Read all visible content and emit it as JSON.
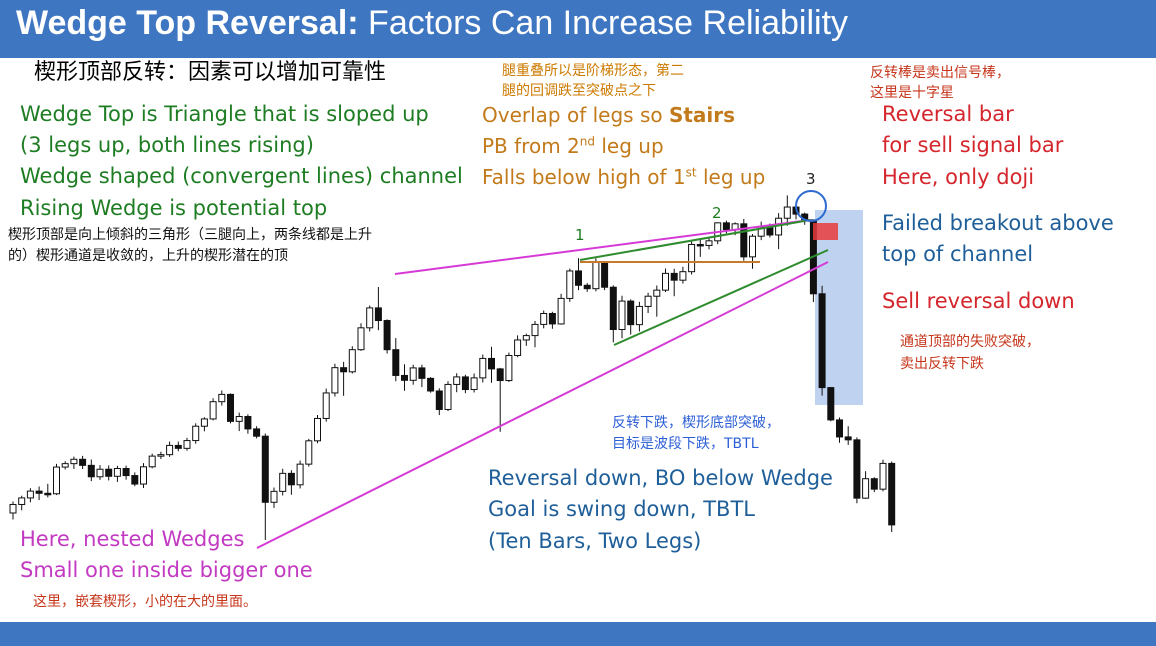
{
  "slide": {
    "title_bold": "Wedge Top Reversal:",
    "title_rest": " Factors Can Increase Reliability",
    "subtitle_cn": "楔形顶部反转：因素可以增加可靠性"
  },
  "left_notes": {
    "line1": "Wedge Top is Triangle that is sloped up",
    "line2": "(3 legs up, both lines rising)",
    "line3": "Wedge shaped (convergent lines) channel",
    "line4": "Rising Wedge is potential top",
    "cn1": "楔形顶部是向上倾斜的三角形（三腿向上，两条线都是上升",
    "cn2": "的）楔形通道是收敛的，上升的楔形潜在的顶"
  },
  "middle_notes": {
    "cn1": "腿重叠所以是阶梯形态，第二",
    "cn2": "腿的回调跌至突破点之下",
    "line1_pre": "Overlap of legs so ",
    "line1_bold": "Stairs",
    "line2_pre": "PB from 2",
    "line2_sup": "nd",
    "line2_post": " leg up",
    "line3_pre": "Falls below high of 1",
    "line3_sup": "st",
    "line3_post": " leg up"
  },
  "right_notes": {
    "cn1": "反转棒是卖出信号棒，",
    "cn2": "这里是十字星",
    "line1": "Reversal bar",
    "line2": "for sell signal bar",
    "line3": "Here, only doji",
    "line4": "Failed breakout above",
    "line5": "top of channel",
    "line6": "Sell reversal down",
    "cn3": "通道顶部的失败突破，",
    "cn4": "卖出反转下跌"
  },
  "bottom_notes": {
    "cn1": "反转下跌，楔形底部突破，",
    "cn2": "目标是波段下跌，TBTL",
    "line1": "Reversal down, BO below Wedge",
    "line2": "Goal is swing down, TBTL",
    "line3": "(Ten Bars, Two Legs)",
    "nested1": "Here, nested Wedges",
    "nested2": "Small one inside bigger one",
    "nested_cn": "这里，嵌套楔形，小的在大的里面。"
  },
  "chart_data": {
    "type": "candlestick",
    "leg_labels": [
      "1",
      "2",
      "3"
    ],
    "colors": {
      "bull": "#ffffff",
      "bear": "#111111",
      "outer_wedge": "#d63ad6",
      "inner_wedge": "#2e8b2e",
      "breakout_line": "#c77a2e",
      "highlight": "#a9c4ec",
      "signal": "#e83b3b"
    },
    "candles": [
      [
        14.0,
        18.7,
        11.3,
        17.5
      ],
      [
        17.5,
        21.1,
        15.1,
        20.2
      ],
      [
        20.2,
        24.2,
        18.4,
        23.0
      ],
      [
        23.0,
        24.9,
        19.3,
        22.1
      ],
      [
        22.1,
        26.0,
        20.4,
        21.9
      ],
      [
        21.9,
        34.2,
        21.4,
        32.9
      ],
      [
        32.9,
        35.3,
        31.9,
        34.3
      ],
      [
        34.3,
        37.2,
        32.1,
        36.1
      ],
      [
        36.1,
        37.5,
        32.1,
        33.6
      ],
      [
        33.6,
        36.0,
        27.1,
        28.9
      ],
      [
        28.9,
        33.7,
        27.6,
        32.0
      ],
      [
        32.0,
        33.6,
        27.4,
        29.1
      ],
      [
        29.1,
        33.4,
        26.8,
        32.3
      ],
      [
        32.3,
        33.5,
        27.7,
        29.4
      ],
      [
        29.4,
        30.7,
        25.0,
        25.9
      ],
      [
        25.9,
        34.5,
        24.3,
        33.0
      ],
      [
        33.0,
        38.4,
        32.4,
        37.4
      ],
      [
        37.4,
        39.2,
        36.2,
        38.0
      ],
      [
        38.0,
        43.4,
        37.1,
        41.8
      ],
      [
        41.8,
        43.4,
        39.4,
        40.6
      ],
      [
        40.6,
        44.9,
        39.6,
        43.8
      ],
      [
        43.8,
        50.9,
        42.5,
        49.7
      ],
      [
        49.7,
        53.4,
        47.6,
        52.7
      ],
      [
        52.7,
        61.2,
        52.1,
        59.8
      ],
      [
        59.8,
        64.4,
        58.2,
        62.8
      ],
      [
        62.8,
        63.2,
        50.9,
        51.7
      ],
      [
        51.7,
        55.3,
        47.7,
        53.7
      ],
      [
        53.7,
        54.6,
        46.6,
        48.6
      ],
      [
        48.6,
        49.7,
        44.7,
        45.6
      ],
      [
        45.6,
        46.7,
        2.9,
        18.4
      ],
      [
        18.4,
        24.5,
        16.1,
        22.9
      ],
      [
        22.9,
        32.2,
        21.2,
        30.3
      ],
      [
        30.3,
        31.6,
        21.5,
        25.6
      ],
      [
        25.6,
        35.6,
        24.1,
        34.1
      ],
      [
        34.1,
        44.5,
        33.1,
        43.7
      ],
      [
        43.7,
        54.3,
        42.7,
        52.9
      ],
      [
        52.9,
        65.2,
        51.6,
        63.4
      ],
      [
        63.4,
        75.4,
        61.9,
        73.8
      ],
      [
        73.8,
        76.2,
        62.2,
        72.1
      ],
      [
        72.1,
        82.6,
        71.4,
        81.2
      ],
      [
        81.2,
        92.1,
        80.7,
        90.2
      ],
      [
        90.2,
        99.4,
        88.7,
        98.4
      ],
      [
        98.4,
        107.0,
        89.2,
        93.2
      ],
      [
        93.2,
        93.7,
        79.6,
        81.2
      ],
      [
        81.2,
        86.0,
        68.2,
        70.6
      ],
      [
        70.6,
        75.2,
        64.3,
        68.6
      ],
      [
        68.6,
        75.0,
        66.8,
        73.7
      ],
      [
        73.7,
        75.0,
        65.8,
        69.4
      ],
      [
        69.4,
        69.9,
        63.5,
        64.2
      ],
      [
        64.2,
        65.3,
        54.3,
        56.6
      ],
      [
        56.6,
        68.2,
        55.9,
        66.9
      ],
      [
        66.9,
        71.5,
        63.7,
        70.0
      ],
      [
        70.0,
        70.9,
        63.3,
        64.8
      ],
      [
        64.8,
        71.4,
        63.6,
        69.6
      ],
      [
        69.6,
        79.2,
        67.7,
        77.6
      ],
      [
        77.6,
        82.4,
        67.6,
        73.3
      ],
      [
        73.3,
        73.7,
        47.4,
        68.5
      ],
      [
        68.5,
        80.0,
        67.9,
        78.8
      ],
      [
        78.8,
        87.1,
        78.1,
        85.2
      ],
      [
        85.2,
        87.8,
        82.8,
        87.0
      ],
      [
        87.0,
        93.0,
        82.2,
        91.6
      ],
      [
        91.6,
        97.3,
        90.0,
        96.1
      ],
      [
        96.1,
        96.8,
        89.8,
        91.8
      ],
      [
        91.8,
        104.2,
        91.5,
        102.3
      ],
      [
        102.3,
        114.6,
        100.9,
        113.6
      ],
      [
        113.6,
        118.9,
        105.7,
        107.7
      ],
      [
        107.7,
        108.6,
        105.0,
        106.3
      ],
      [
        106.3,
        118.8,
        105.2,
        117.1
      ],
      [
        117.1,
        117.6,
        105.7,
        106.9
      ],
      [
        106.9,
        107.7,
        84.2,
        89.5
      ],
      [
        89.5,
        103.4,
        85.9,
        101.2
      ],
      [
        101.2,
        101.9,
        87.4,
        91.5
      ],
      [
        91.5,
        100.9,
        88.7,
        99.0
      ],
      [
        99.0,
        104.6,
        96.3,
        103.2
      ],
      [
        103.2,
        107.6,
        94.8,
        105.7
      ],
      [
        105.7,
        114.6,
        104.9,
        112.6
      ],
      [
        112.6,
        114.5,
        103.2,
        109.8
      ],
      [
        109.8,
        115.3,
        108.4,
        113.3
      ],
      [
        113.3,
        126.1,
        112.1,
        124.5
      ],
      [
        124.5,
        126.9,
        119.4,
        124.1
      ],
      [
        124.1,
        127.2,
        122.5,
        126.0
      ],
      [
        126.0,
        133.6,
        124.6,
        133.4
      ],
      [
        133.4,
        134.3,
        129.1,
        130.6
      ],
      [
        130.6,
        133.6,
        128.3,
        133.0
      ],
      [
        133.0,
        135.0,
        117.8,
        119.4
      ],
      [
        119.4,
        128.8,
        114.5,
        127.9
      ],
      [
        127.9,
        133.9,
        126.3,
        131.7
      ],
      [
        131.7,
        133.1,
        127.4,
        128.4
      ],
      [
        128.4,
        137.4,
        122.6,
        135.3
      ],
      [
        135.3,
        144.7,
        132.2,
        139.9
      ],
      [
        139.9,
        141.5,
        134.8,
        137.0
      ],
      [
        137.0,
        137.6,
        132.6,
        134.6
      ],
      [
        134.6,
        134.8,
        100.8,
        104.2
      ],
      [
        104.2,
        107.5,
        62.3,
        65.6
      ],
      [
        65.6,
        65.8,
        51.7,
        52.3
      ],
      [
        52.3,
        53.3,
        42.9,
        45.3
      ],
      [
        45.3,
        49.7,
        42.0,
        44.1
      ],
      [
        44.1,
        45.1,
        18.0,
        20.1
      ],
      [
        20.1,
        31.2,
        19.8,
        28.1
      ],
      [
        28.1,
        28.7,
        22.6,
        23.8
      ],
      [
        23.8,
        35.9,
        22.9,
        34.4
      ],
      [
        34.4,
        35.2,
        6.2,
        9.1
      ]
    ]
  }
}
